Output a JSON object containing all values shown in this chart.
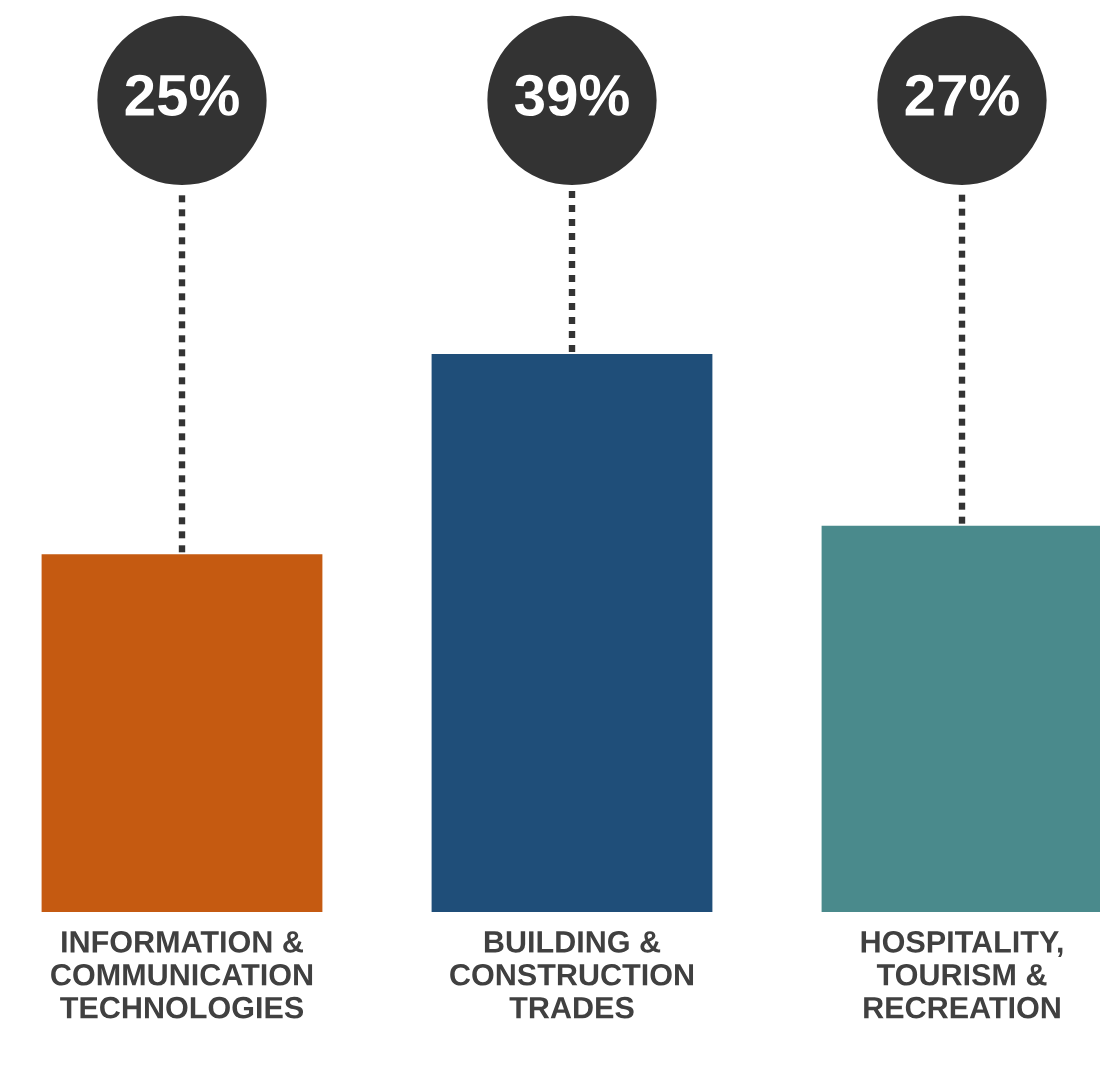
{
  "chart_data": {
    "type": "bar",
    "categories": [
      "INFORMATION &\nCOMMUNICATION\nTECHNOLOGIES",
      "BUILDING &\nCONSTRUCTION\nTRADES",
      "HOSPITALITY,\nTOURISM &\nRECREATION"
    ],
    "values": [
      25,
      39,
      27
    ],
    "colors": [
      "#c55a11",
      "#1f4e79",
      "#4a8a8c"
    ],
    "value_labels": [
      "25%",
      "39%",
      "27%"
    ]
  }
}
